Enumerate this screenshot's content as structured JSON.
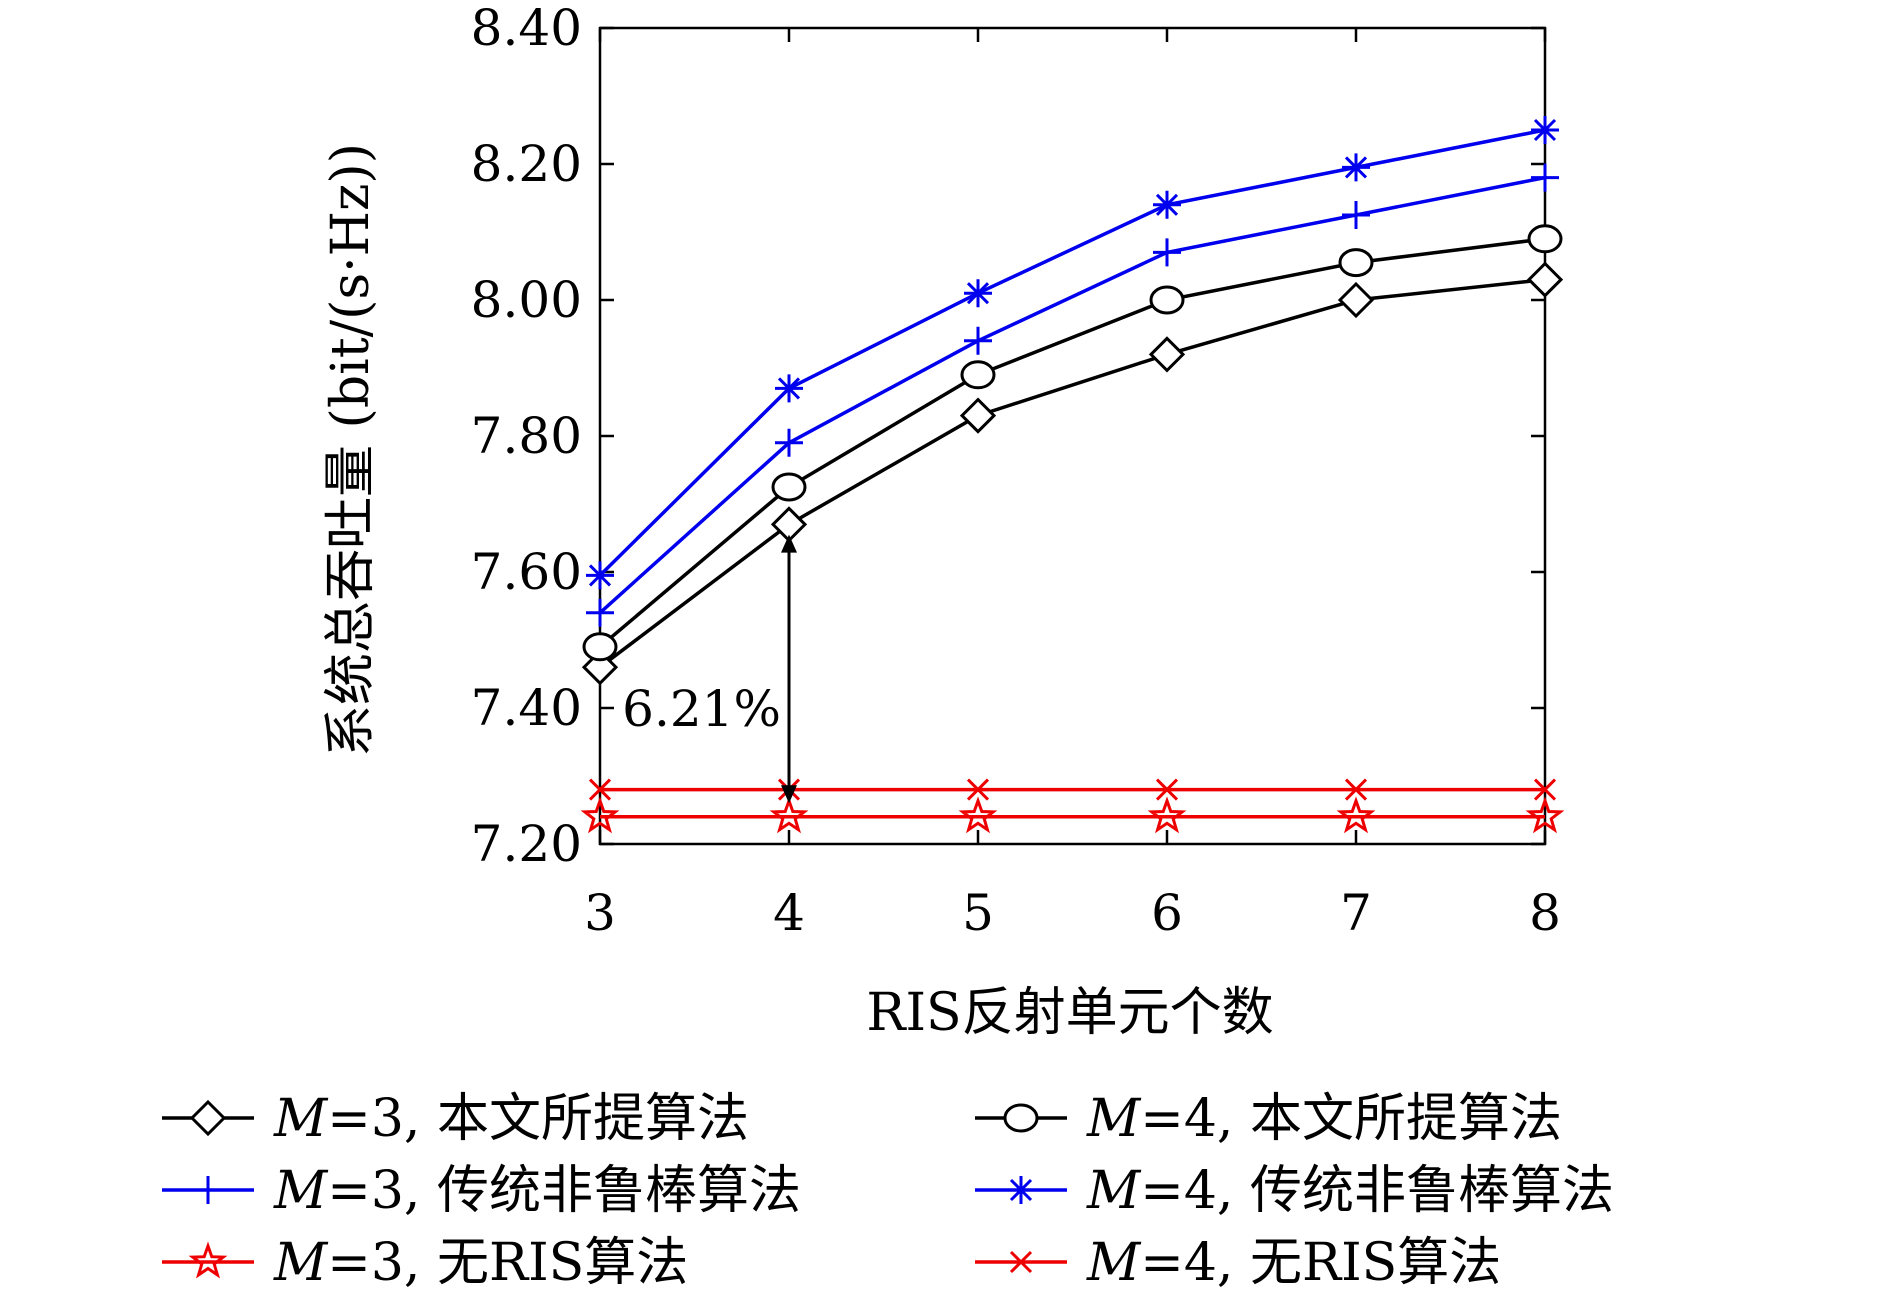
{
  "chart_data": {
    "type": "line",
    "xlabel": "RIS反射单元个数",
    "ylabel": "系统总吞吐量 (bit/(s·Hz))",
    "x": [
      3,
      4,
      5,
      6,
      7,
      8
    ],
    "xticks": [
      "3",
      "4",
      "5",
      "6",
      "7",
      "8"
    ],
    "xlim": [
      3,
      8
    ],
    "ylim": [
      7.2,
      8.4
    ],
    "yticks": [
      7.2,
      7.4,
      7.6,
      7.8,
      8.0,
      8.2,
      8.4
    ],
    "ytick_labels": [
      "7.20",
      "7.40",
      "7.60",
      "7.80",
      "8.00",
      "8.20",
      "8.40"
    ],
    "grid": false,
    "legend_placement": "below",
    "series": [
      {
        "name": "M=3, 本文所提算法",
        "name_italic": "M",
        "name_rest": "=3, 本文所提算法",
        "color": "#000000",
        "marker": "diamond",
        "values": [
          7.46,
          7.67,
          7.83,
          7.92,
          8.0,
          8.03
        ]
      },
      {
        "name": "M=4, 本文所提算法",
        "name_italic": "M",
        "name_rest": "=4, 本文所提算法",
        "color": "#000000",
        "marker": "circle",
        "values": [
          7.49,
          7.725,
          7.89,
          8.0,
          8.055,
          8.09
        ]
      },
      {
        "name": "M=3, 传统非鲁棒算法",
        "name_italic": "M",
        "name_rest": "=3, 传统非鲁棒算法",
        "color": "#0000ee",
        "marker": "plus",
        "values": [
          7.54,
          7.79,
          7.94,
          8.07,
          8.125,
          8.18
        ]
      },
      {
        "name": "M=4, 传统非鲁棒算法",
        "name_italic": "M",
        "name_rest": "=4, 传统非鲁棒算法",
        "color": "#0000ee",
        "marker": "asterisk",
        "values": [
          7.595,
          7.87,
          8.01,
          8.14,
          8.195,
          8.25
        ]
      },
      {
        "name": "M=3, 无RIS算法",
        "name_italic": "M",
        "name_rest": "=3, 无RIS算法",
        "color": "#ee0000",
        "marker": "star",
        "values": [
          7.24,
          7.24,
          7.24,
          7.24,
          7.24,
          7.24
        ]
      },
      {
        "name": "M=4, 无RIS算法",
        "name_italic": "M",
        "name_rest": "=4, 无RIS算法",
        "color": "#ee0000",
        "marker": "x",
        "values": [
          7.28,
          7.28,
          7.28,
          7.28,
          7.28,
          7.28
        ]
      }
    ],
    "annotation": {
      "text": "6.21%",
      "x": 4,
      "y_from": 7.26,
      "y_to": 7.655
    }
  }
}
